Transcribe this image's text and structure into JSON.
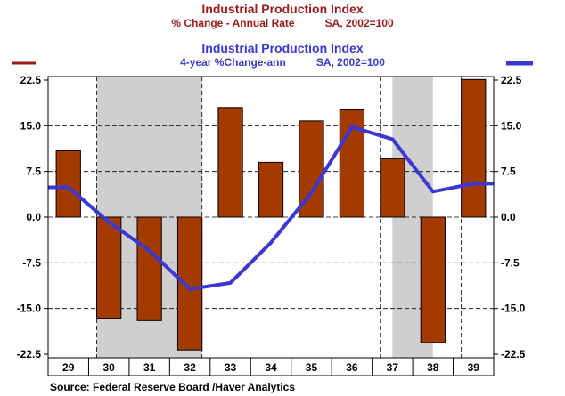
{
  "title_left": {
    "title": "Industrial Production Index",
    "subtitle_measure": "% Change - Annual Rate",
    "subtitle_basis": "SA, 2002=100"
  },
  "title_right": {
    "title": "Industrial Production Index",
    "subtitle_measure": "4-year %Change-ann",
    "subtitle_basis": "SA, 2002=100"
  },
  "source": "Source:  Federal Reserve Board /Haver Analytics",
  "colors": {
    "bar": "#a33a00",
    "line": "#3a38d0",
    "shade": "#cfcfcf",
    "left_title": "#9b1b1b",
    "right_title": "#3a38d0"
  },
  "chart_data": {
    "type": "bar+line",
    "categories": [
      "29",
      "30",
      "31",
      "32",
      "33",
      "34",
      "35",
      "36",
      "37",
      "38",
      "39"
    ],
    "ylim": [
      -22.5,
      22.5
    ],
    "y_ticks": [
      22.5,
      15.0,
      7.5,
      0.0,
      -7.5,
      -15.0,
      -22.5
    ],
    "y_tick_labels": [
      "22.5",
      "15.0",
      "7.5",
      "0.0",
      "-7.5",
      "-15.0",
      "-22.5"
    ],
    "series": [
      {
        "name": "Industrial Production Index % Change - Annual Rate SA, 2002=100",
        "kind": "bar",
        "axis": "left",
        "values": [
          10.9,
          -16.6,
          -17.0,
          -21.8,
          18.0,
          9.0,
          15.8,
          17.6,
          9.6,
          -20.6,
          22.6
        ]
      },
      {
        "name": "Industrial Production Index 4-year %Change-ann SA, 2002=100",
        "kind": "line",
        "axis": "right",
        "points": [
          {
            "x": 28.5,
            "y": 4.9
          },
          {
            "x": 29.0,
            "y": 4.9
          },
          {
            "x": 30.0,
            "y": -0.8
          },
          {
            "x": 31.0,
            "y": -5.5
          },
          {
            "x": 32.0,
            "y": -11.8
          },
          {
            "x": 33.0,
            "y": -10.8
          },
          {
            "x": 34.0,
            "y": -4.2
          },
          {
            "x": 35.0,
            "y": 4.0
          },
          {
            "x": 36.0,
            "y": 14.8
          },
          {
            "x": 37.0,
            "y": 12.8
          },
          {
            "x": 38.0,
            "y": 4.2
          },
          {
            "x": 39.0,
            "y": 5.5
          },
          {
            "x": 39.5,
            "y": 5.5
          }
        ]
      }
    ],
    "recession_shading": [
      [
        29.7,
        32.3
      ],
      [
        37.0,
        38.0
      ]
    ],
    "vertical_dashed_lines_at": [
      29.7,
      32.3,
      36.7,
      38.7
    ],
    "horizontal_gridlines": true,
    "legend": {
      "left": "bar series (short red line)",
      "right": "line series (thick blue line)"
    }
  }
}
